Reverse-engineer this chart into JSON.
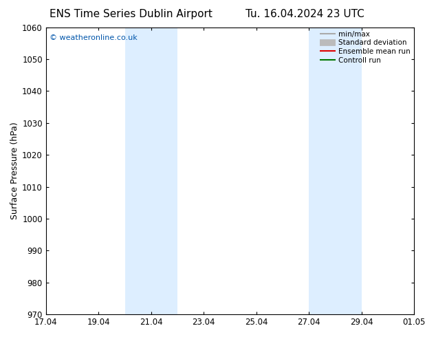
{
  "title_left": "ENS Time Series Dublin Airport",
  "title_right": "Tu. 16.04.2024 23 UTC",
  "ylabel": "Surface Pressure (hPa)",
  "ylim": [
    970,
    1060
  ],
  "yticks": [
    970,
    980,
    990,
    1000,
    1010,
    1020,
    1030,
    1040,
    1050,
    1060
  ],
  "xtick_labels": [
    "17.04",
    "19.04",
    "21.04",
    "23.04",
    "25.04",
    "27.04",
    "29.04",
    "01.05"
  ],
  "xtick_positions": [
    0,
    2,
    4,
    6,
    8,
    10,
    12,
    14
  ],
  "xlim": [
    0,
    14
  ],
  "shade_regions": [
    {
      "x_start": 3.0,
      "x_end": 5.0
    },
    {
      "x_start": 10.0,
      "x_end": 12.0
    }
  ],
  "shade_color": "#ddeeff",
  "background_color": "#ffffff",
  "watermark_text": "© weatheronline.co.uk",
  "watermark_color": "#0055aa",
  "legend_entries": [
    {
      "label": "min/max",
      "color": "#aaaaaa",
      "lw": 1.5
    },
    {
      "label": "Standard deviation",
      "color": "#bbbbbb",
      "lw": 7
    },
    {
      "label": "Ensemble mean run",
      "color": "#dd0000",
      "lw": 1.5
    },
    {
      "label": "Controll run",
      "color": "#007700",
      "lw": 1.5
    }
  ],
  "tick_fontsize": 8.5,
  "label_fontsize": 9,
  "title_fontsize": 11
}
